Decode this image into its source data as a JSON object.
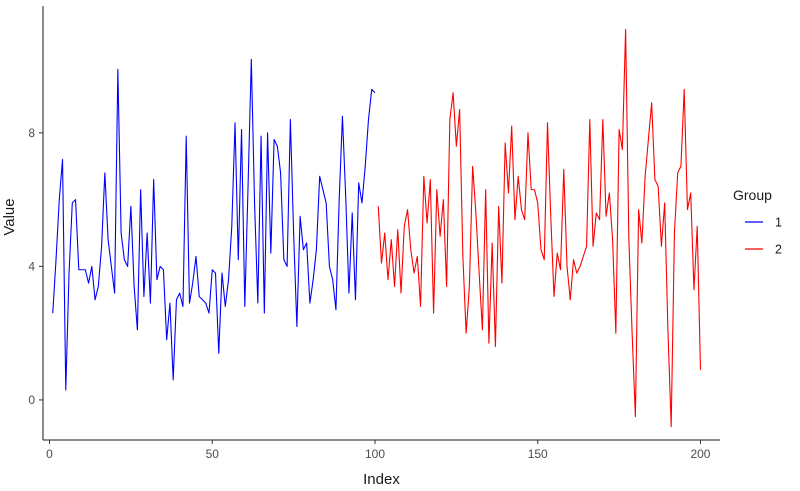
{
  "chart_data": {
    "type": "line",
    "xlabel": "Index",
    "ylabel": "Value",
    "xlim": [
      -2,
      206
    ],
    "ylim": [
      -1.2,
      11.8
    ],
    "x_ticks": [
      0,
      50,
      100,
      150,
      200
    ],
    "x_tick_labels": [
      "0",
      "50",
      "100",
      "150",
      "200"
    ],
    "y_ticks": [
      0,
      4,
      8
    ],
    "y_tick_labels": [
      "0",
      "4",
      "8"
    ],
    "grid": false,
    "legend": {
      "title": "Group",
      "position": "right",
      "entries": [
        {
          "label": "1",
          "color": "#0000ff"
        },
        {
          "label": "2",
          "color": "#ff0000"
        }
      ]
    },
    "series": [
      {
        "name": "1",
        "color": "#0000ff",
        "x_start": 1,
        "values": [
          2.6,
          4.2,
          6.0,
          7.2,
          0.3,
          3.8,
          5.9,
          6.0,
          3.9,
          3.9,
          3.9,
          3.5,
          4.0,
          3.0,
          3.4,
          4.6,
          6.8,
          4.8,
          4.0,
          3.2,
          9.9,
          5.0,
          4.2,
          4.0,
          5.8,
          3.4,
          2.1,
          6.3,
          3.1,
          5.0,
          2.9,
          6.6,
          3.6,
          4.0,
          3.9,
          1.8,
          2.9,
          0.6,
          3.0,
          3.2,
          2.8,
          7.9,
          2.9,
          3.5,
          4.3,
          3.1,
          3.0,
          2.9,
          2.6,
          3.9,
          3.8,
          1.4,
          3.8,
          2.8,
          3.6,
          5.2,
          8.3,
          4.2,
          8.1,
          2.8,
          6.4,
          10.2,
          5.9,
          2.9,
          7.9,
          2.6,
          8.0,
          4.4,
          7.8,
          7.6,
          6.8,
          4.2,
          4.0,
          8.4,
          5.0,
          2.2,
          5.5,
          4.5,
          4.7,
          2.9,
          3.6,
          4.5,
          6.7,
          6.3,
          5.9,
          4.0,
          3.6,
          2.7,
          6.0,
          8.5,
          6.1,
          3.2,
          5.6,
          3.0,
          6.5,
          5.9,
          7.0,
          8.4,
          9.3,
          9.2
        ]
      },
      {
        "name": "2",
        "color": "#ff0000",
        "x_start": 101,
        "values": [
          5.8,
          4.1,
          5.0,
          3.6,
          4.8,
          3.4,
          5.1,
          3.2,
          5.2,
          5.7,
          4.5,
          3.8,
          4.3,
          2.8,
          6.7,
          5.3,
          6.6,
          2.6,
          6.3,
          4.9,
          6.0,
          3.4,
          8.4,
          9.2,
          7.6,
          8.7,
          4.3,
          2.0,
          3.4,
          7.0,
          5.6,
          3.8,
          2.1,
          6.3,
          1.7,
          4.7,
          1.6,
          5.8,
          3.5,
          7.7,
          6.2,
          8.2,
          5.4,
          6.7,
          5.7,
          5.4,
          8.0,
          6.3,
          6.3,
          5.9,
          4.5,
          4.2,
          8.3,
          5.5,
          3.1,
          4.4,
          3.9,
          6.9,
          4.0,
          3.0,
          4.2,
          3.8,
          4.0,
          4.3,
          4.6,
          8.4,
          4.6,
          5.6,
          5.4,
          8.4,
          5.5,
          6.2,
          4.8,
          2.0,
          8.1,
          7.5,
          11.1,
          4.8,
          2.0,
          -0.5,
          5.7,
          4.7,
          6.7,
          7.8,
          8.9,
          6.6,
          6.4,
          4.6,
          5.9,
          2.1,
          -0.8,
          5.0,
          6.8,
          7.0,
          9.3,
          5.7,
          6.2,
          3.3,
          5.2,
          0.9
        ]
      }
    ]
  }
}
